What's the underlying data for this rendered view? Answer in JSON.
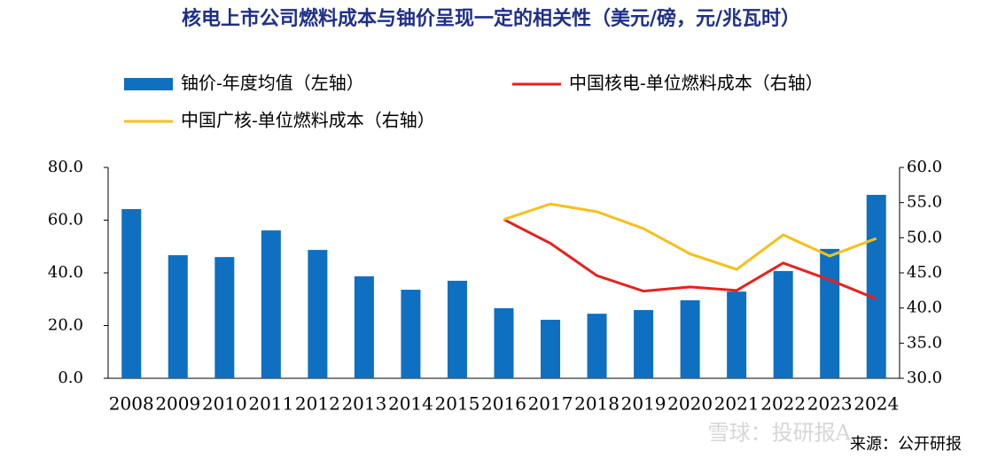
{
  "chart_data": {
    "type": "bar-line",
    "title": "核电上市公司燃料成本与铀价呈现一定的相关性（美元/磅，元/兆瓦时）",
    "categories": [
      "2008",
      "2009",
      "2010",
      "2011",
      "2012",
      "2013",
      "2014",
      "2015",
      "2016",
      "2017",
      "2018",
      "2019",
      "2020",
      "2021",
      "2022",
      "2023",
      "2024"
    ],
    "series": [
      {
        "name": "铀价-年度均值（左轴）",
        "type": "bar",
        "color": "#0f6fc0",
        "axis": "y",
        "values": [
          64.2,
          46.7,
          46.0,
          56.1,
          48.7,
          38.7,
          33.6,
          37.0,
          26.6,
          22.2,
          24.5,
          25.9,
          29.6,
          32.9,
          40.7,
          49.1,
          69.6
        ]
      },
      {
        "name": "中国核电-单位燃料成本（右轴）",
        "type": "line",
        "color": "#e8201c",
        "axis": "y2",
        "values": [
          null,
          null,
          null,
          null,
          null,
          null,
          null,
          null,
          52.6,
          49.2,
          44.6,
          42.4,
          43.0,
          42.5,
          46.4,
          44.0,
          41.3
        ]
      },
      {
        "name": "中国广核-单位燃料成本（右轴）",
        "type": "line",
        "color": "#f5c01a",
        "axis": "y2",
        "values": [
          null,
          null,
          null,
          null,
          null,
          null,
          null,
          null,
          52.6,
          54.8,
          53.7,
          51.3,
          47.7,
          45.5,
          50.4,
          47.4,
          49.9
        ]
      }
    ],
    "ylim": [
      0,
      80
    ],
    "yticks": [
      {
        "value": 0,
        "label": "0.0"
      },
      {
        "value": 20,
        "label": "20.0"
      },
      {
        "value": 40,
        "label": "40.0"
      },
      {
        "value": 60,
        "label": "60.0"
      },
      {
        "value": 80,
        "label": "80.0"
      }
    ],
    "y2lim": [
      30,
      60
    ],
    "y2ticks": [
      {
        "value": 30,
        "label": "30.0"
      },
      {
        "value": 35,
        "label": "35.0"
      },
      {
        "value": 40,
        "label": "40.0"
      },
      {
        "value": 45,
        "label": "45.0"
      },
      {
        "value": 50,
        "label": "50.0"
      },
      {
        "value": 55,
        "label": "55.0"
      },
      {
        "value": 60,
        "label": "60.0"
      }
    ],
    "grid": false,
    "source": "来源：公开研报",
    "watermark": "雪球：投研报A"
  }
}
